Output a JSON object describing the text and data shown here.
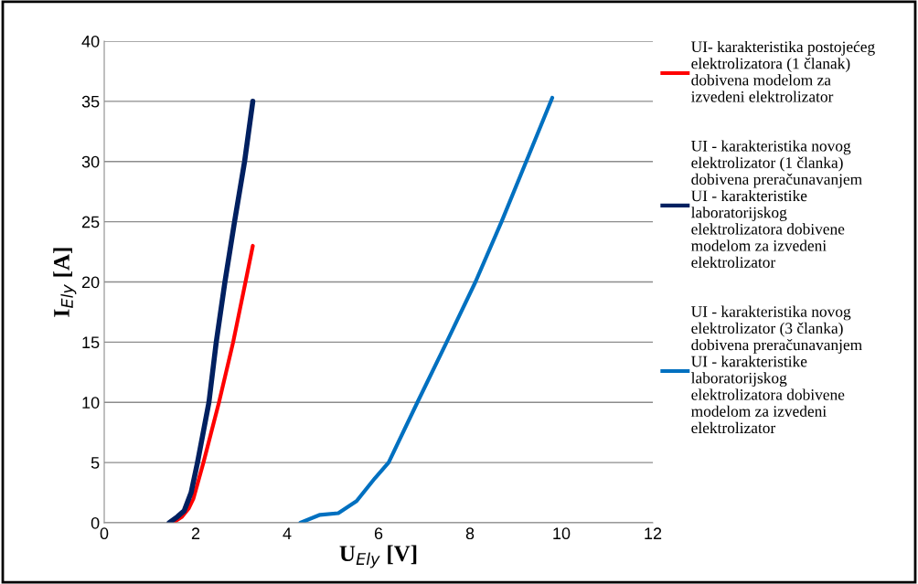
{
  "chart_data": {
    "type": "line",
    "xlabel": "U$_{Ely}$ [V]",
    "ylabel": "I$_{Ely}$ [A]",
    "xlim": [
      0,
      12
    ],
    "xticks": [
      0,
      2,
      4,
      6,
      8,
      10,
      12
    ],
    "ylim": [
      0,
      40
    ],
    "yticks": [
      0,
      5,
      10,
      15,
      20,
      25,
      30,
      35,
      40
    ],
    "grid": "y",
    "legend": "right",
    "marker": "none",
    "line_style": "solid",
    "series": [
      {
        "name": "UI- karakteristika postojećeg\nelektrolizatora (1 članak)\ndobivena modelom za\nizvedeni elektrolizator",
        "color": "#ff0000",
        "x": [
          1.5,
          1.7,
          1.85,
          1.95,
          2.17,
          2.51,
          2.82,
          3.09,
          3.25
        ],
        "values": [
          0,
          0.5,
          1.2,
          2,
          5,
          10,
          15,
          20,
          23
        ]
      },
      {
        "name": "UI - karakteristika novog\nelektrolizator (1 članka)\ndobivena preračunavanjem\nUI - karakteristike\nlaboratorijskog\nelektrolizatora dobivene\nmodelom za izvedeni\nelektrolizator",
        "color": "#002060",
        "x": [
          1.42,
          1.6,
          1.75,
          1.9,
          2.04,
          2.29,
          2.45,
          2.64,
          2.85,
          3.07,
          3.25
        ],
        "values": [
          0,
          0.5,
          1,
          2.5,
          5,
          10,
          15,
          20,
          25,
          30,
          35
        ]
      },
      {
        "name": "UI - karakteristika novog\nelektrolizator (3 članka)\ndobivena preračunavanjem\nUI - karakteristike\nlaboratorijskog\nelektrolizatora dobivene\nmodelom za izvedeni\nelektrolizator",
        "color": "#0070c0",
        "x": [
          4.29,
          4.72,
          5.12,
          5.52,
          5.92,
          6.22,
          6.85,
          7.49,
          8.12,
          8.69,
          9.23,
          9.8
        ],
        "values": [
          0,
          0.66,
          0.8,
          1.8,
          3.7,
          5,
          10,
          15,
          20,
          25,
          30,
          35.3
        ]
      }
    ]
  }
}
